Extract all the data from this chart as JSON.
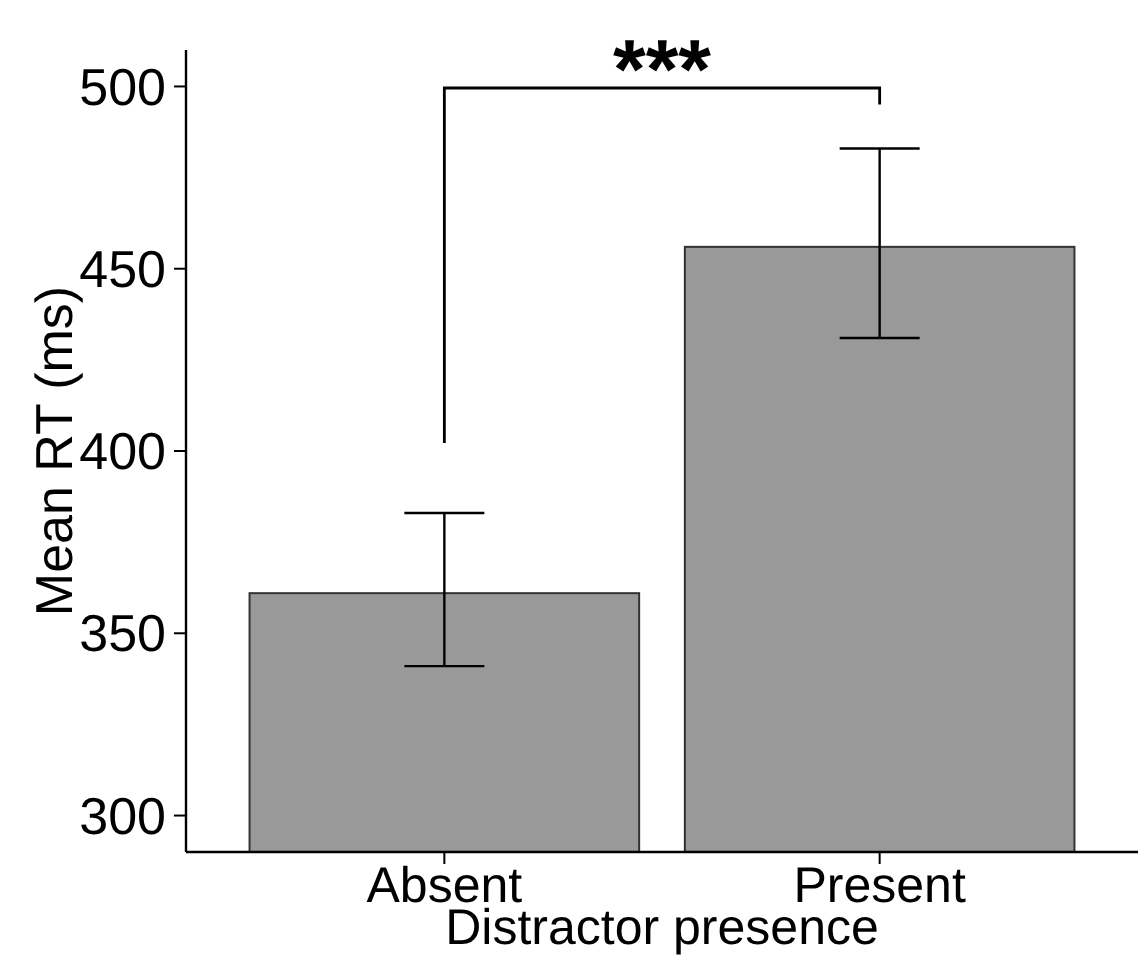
{
  "chart_data": {
    "type": "bar",
    "xlabel": "Distractor presence",
    "ylabel": "Mean RT (ms)",
    "categories": [
      "Absent",
      "Present"
    ],
    "values": [
      361,
      456
    ],
    "errors": [
      [
        341,
        383
      ],
      [
        431,
        483
      ]
    ],
    "color": "#999999",
    "ylim": [
      290,
      510
    ],
    "yticks": [
      300,
      350,
      400,
      450,
      500
    ],
    "grid": false,
    "annotations": [
      "***"
    ]
  }
}
